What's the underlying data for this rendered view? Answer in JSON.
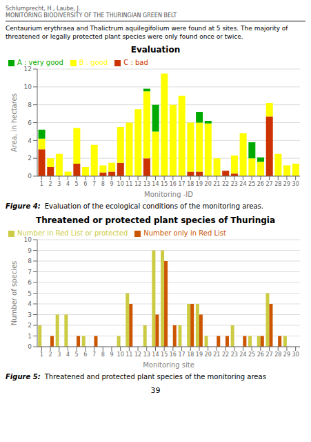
{
  "header": [
    "Schlumprecht, H., Laube, J.",
    "MONITORING BIODIVERSITY OF THE THURINGIAN GREEN BELT"
  ],
  "text": "Centaurium erythraea and Thalictrum aquilegifolium were found at 5 sites. The majority of\nthreatened or legally protected plant species were only found once or twice.",
  "page_number": "39",
  "chart_data": [
    {
      "type": "bar",
      "stacked": true,
      "title": "Evaluation",
      "xlabel": "Monitoring -ID",
      "ylabel": "Area, in hectares",
      "caption_label": "Figure 4:",
      "caption": "Evaluation of the ecological conditions of the monitoring areas.",
      "categories": [
        1,
        2,
        3,
        4,
        5,
        6,
        7,
        8,
        9,
        10,
        11,
        12,
        13,
        14,
        15,
        16,
        17,
        18,
        19,
        20,
        21,
        22,
        23,
        24,
        25,
        26,
        27,
        28,
        29,
        30
      ],
      "series": [
        {
          "name": "C : bad",
          "color": "#cc3300",
          "values": [
            3.0,
            1.0,
            0,
            0,
            1.4,
            0,
            0,
            0.4,
            0.5,
            1.5,
            0,
            0,
            2.0,
            0,
            0,
            0,
            0,
            0.5,
            0.5,
            0,
            0,
            0.6,
            0.3,
            0,
            0,
            0,
            6.7,
            0,
            0,
            0
          ]
        },
        {
          "name": "B : good",
          "color": "#ffff00",
          "values": [
            1.2,
            1.0,
            2.5,
            0.5,
            4.0,
            1.0,
            3.5,
            0.8,
            1.0,
            4.0,
            6.0,
            7.5,
            7.5,
            5.0,
            11.5,
            8.0,
            9.0,
            5.5,
            5.5,
            5.9,
            2.0,
            0,
            2.0,
            4.8,
            2.0,
            1.6,
            1.5,
            2.5,
            1.2,
            1.4
          ]
        },
        {
          "name": "A : very good",
          "color": "#00aa00",
          "values": [
            1.0,
            0,
            0,
            0,
            0,
            0,
            0,
            0,
            0,
            0,
            0,
            0,
            0.3,
            3.0,
            0,
            0,
            0,
            0,
            1.2,
            0.3,
            0,
            0,
            0,
            0,
            1.8,
            0.5,
            0,
            0,
            0,
            0
          ]
        }
      ],
      "ylim": [
        0,
        12
      ],
      "yticks": [
        0,
        2,
        4,
        6,
        8,
        10,
        12
      ],
      "grid": true,
      "legend": "upper left"
    },
    {
      "type": "bar",
      "stacked": false,
      "title": "Threatened or protected plant species of Thuringia",
      "xlabel": "Monitoring site",
      "ylabel": "Number of species",
      "caption_label": "Figure 5:",
      "caption": "Threatened and protected plant species of the monitoring areas",
      "categories": [
        1,
        2,
        3,
        4,
        5,
        6,
        7,
        8,
        9,
        10,
        11,
        12,
        13,
        14,
        15,
        16,
        17,
        18,
        19,
        20,
        21,
        22,
        23,
        24,
        25,
        26,
        27,
        28,
        29,
        30
      ],
      "series": [
        {
          "name": "Number in Red List or protected",
          "color": "#cccc44",
          "values": [
            2,
            0,
            3,
            3,
            0,
            1,
            0,
            0,
            0,
            1,
            5,
            0,
            2,
            9,
            9,
            0,
            2,
            4,
            4,
            1,
            0,
            0,
            2,
            0,
            1,
            1,
            5,
            0,
            1,
            0
          ]
        },
        {
          "name": "Number only in Red List",
          "color": "#cc5500",
          "values": [
            0,
            1,
            0,
            0,
            1,
            0,
            1,
            0,
            0,
            0,
            4,
            0,
            0,
            3,
            8,
            2,
            0,
            4,
            3,
            0,
            1,
            1,
            0,
            1,
            0,
            1,
            4,
            1,
            0,
            0
          ]
        }
      ],
      "ylim": [
        0,
        10
      ],
      "yticks": [
        0,
        1,
        2,
        3,
        4,
        5,
        6,
        7,
        8,
        9,
        10
      ],
      "grid": true,
      "legend": "upper left"
    }
  ]
}
